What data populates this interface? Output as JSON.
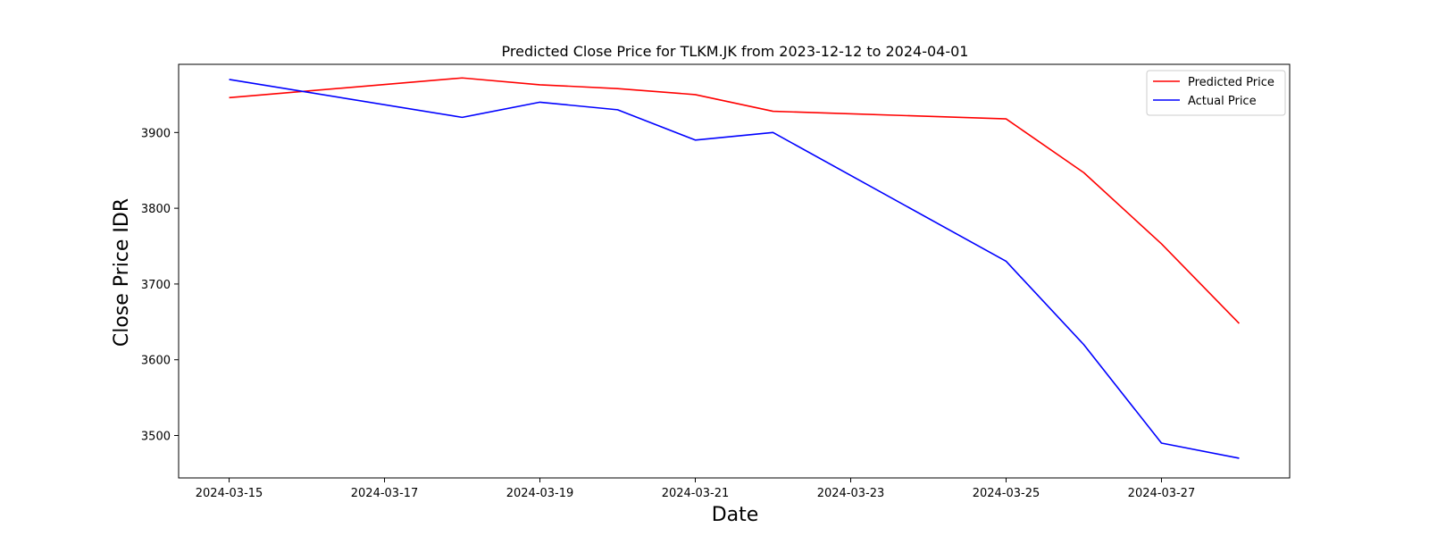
{
  "chart_data": {
    "type": "line",
    "title": "Predicted Close Price for TLKM.JK from 2023-12-12 to 2024-04-01",
    "xlabel": "Date",
    "ylabel": "Close Price IDR",
    "x_tick_labels": [
      "2024-03-15",
      "2024-03-17",
      "2024-03-19",
      "2024-03-21",
      "2024-03-23",
      "2024-03-25",
      "2024-03-27"
    ],
    "y_ticks": [
      3500,
      3600,
      3700,
      3800,
      3900
    ],
    "xlim": [
      "2024-03-14.35",
      "2024-03-28.65"
    ],
    "ylim": [
      3444,
      3990
    ],
    "grid": false,
    "legend_position": "upper right",
    "x": [
      "2024-03-15",
      "2024-03-18",
      "2024-03-19",
      "2024-03-20",
      "2024-03-21",
      "2024-03-22",
      "2024-03-25",
      "2024-03-26",
      "2024-03-27",
      "2024-03-28"
    ],
    "series": [
      {
        "name": "Predicted Price",
        "color": "#ff0000",
        "values": [
          3946,
          3972,
          3963,
          3958,
          3950,
          3928,
          3918,
          3847,
          3753,
          3648
        ]
      },
      {
        "name": "Actual Price",
        "color": "#0000ff",
        "values": [
          3970,
          3920,
          3940,
          3930,
          3890,
          3900,
          3730,
          3620,
          3490,
          3470
        ]
      }
    ]
  }
}
